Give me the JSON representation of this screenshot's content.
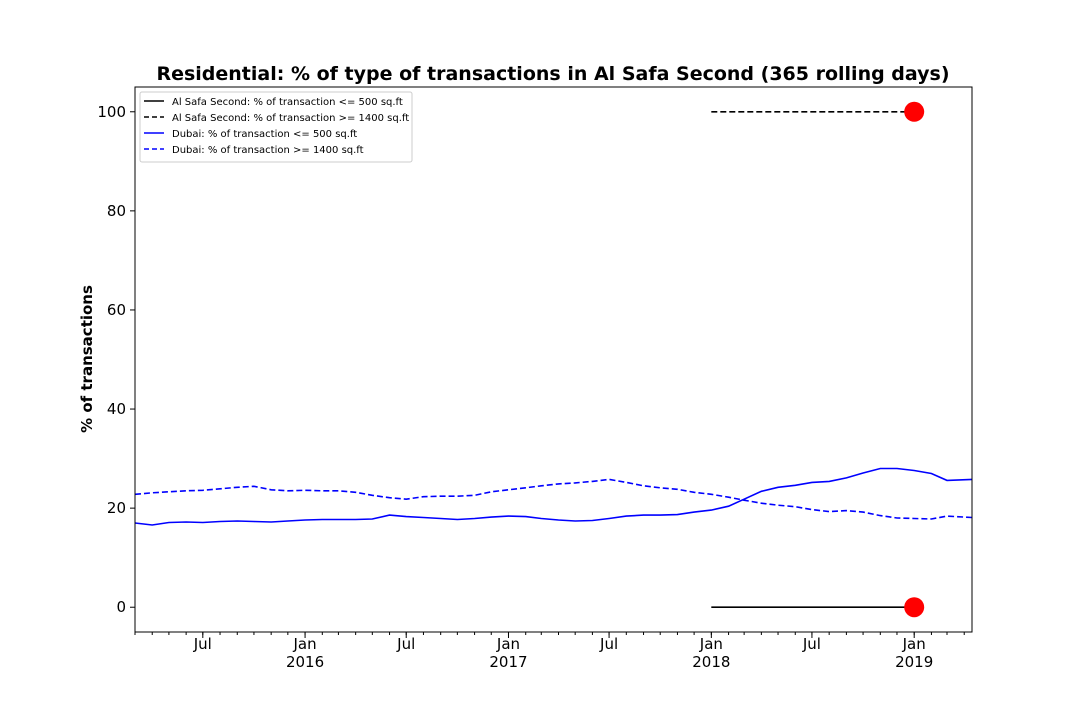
{
  "chart_data": {
    "type": "line",
    "title": "Residential: % of type of transactions in Al Safa Second (365 rolling days)",
    "xlabel": "",
    "ylabel": "% of transactions",
    "xlim": [
      "2015-03-01",
      "2019-04-15"
    ],
    "ylim": [
      -5,
      105
    ],
    "yticks": [
      0,
      20,
      40,
      60,
      80,
      100
    ],
    "xticks": [
      {
        "date": "2015-07-01",
        "label": "Jul",
        "sublabel": ""
      },
      {
        "date": "2016-01-01",
        "label": "Jan",
        "sublabel": "2016"
      },
      {
        "date": "2016-07-01",
        "label": "Jul",
        "sublabel": ""
      },
      {
        "date": "2017-01-01",
        "label": "Jan",
        "sublabel": "2017"
      },
      {
        "date": "2017-07-01",
        "label": "Jul",
        "sublabel": ""
      },
      {
        "date": "2018-01-01",
        "label": "Jan",
        "sublabel": "2018"
      },
      {
        "date": "2018-07-01",
        "label": "Jul",
        "sublabel": ""
      },
      {
        "date": "2019-01-01",
        "label": "Jan",
        "sublabel": "2019"
      }
    ],
    "grid": false,
    "legend_position": "upper-left",
    "series": [
      {
        "name": "Al Safa Second: % of transaction <= 500 sq.ft",
        "color": "#000000",
        "dash": "solid",
        "x": [
          "2018-01-01",
          "2019-01-01"
        ],
        "y": [
          0,
          0
        ],
        "end_marker": {
          "x": "2019-01-01",
          "y": 0,
          "color": "#ff0000"
        }
      },
      {
        "name": "Al Safa Second: % of transaction >= 1400 sq.ft",
        "color": "#000000",
        "dash": "dashed",
        "x": [
          "2018-01-01",
          "2019-01-01"
        ],
        "y": [
          100,
          100
        ],
        "end_marker": {
          "x": "2019-01-01",
          "y": 100,
          "color": "#ff0000"
        }
      },
      {
        "name": "Dubai: % of transaction <= 500 sq.ft",
        "color": "#0000ff",
        "dash": "solid",
        "x": [
          "2015-03-01",
          "2015-04-01",
          "2015-05-01",
          "2015-06-01",
          "2015-07-01",
          "2015-08-01",
          "2015-09-01",
          "2015-10-01",
          "2015-11-01",
          "2015-12-01",
          "2016-01-01",
          "2016-02-01",
          "2016-03-01",
          "2016-04-01",
          "2016-05-01",
          "2016-06-01",
          "2016-07-01",
          "2016-08-01",
          "2016-09-01",
          "2016-10-01",
          "2016-11-01",
          "2016-12-01",
          "2017-01-01",
          "2017-02-01",
          "2017-03-01",
          "2017-04-01",
          "2017-05-01",
          "2017-06-01",
          "2017-07-01",
          "2017-08-01",
          "2017-09-01",
          "2017-10-01",
          "2017-11-01",
          "2017-12-01",
          "2018-01-01",
          "2018-02-01",
          "2018-03-01",
          "2018-04-01",
          "2018-05-01",
          "2018-06-01",
          "2018-07-01",
          "2018-08-01",
          "2018-09-01",
          "2018-10-01",
          "2018-11-01",
          "2018-12-01",
          "2019-01-01",
          "2019-02-01",
          "2019-03-01",
          "2019-04-15"
        ],
        "y": [
          17.0,
          16.6,
          17.1,
          17.2,
          17.1,
          17.3,
          17.4,
          17.3,
          17.2,
          17.4,
          17.6,
          17.7,
          17.7,
          17.7,
          17.8,
          18.6,
          18.3,
          18.1,
          17.9,
          17.7,
          17.9,
          18.2,
          18.4,
          18.3,
          17.9,
          17.6,
          17.4,
          17.5,
          17.9,
          18.4,
          18.6,
          18.6,
          18.7,
          19.2,
          19.6,
          20.4,
          21.8,
          23.4,
          24.2,
          24.6,
          25.2,
          25.4,
          26.1,
          27.1,
          28.0,
          28.0,
          27.6,
          27.0,
          25.6,
          25.8
        ]
      },
      {
        "name": "Dubai: % of transaction >= 1400 sq.ft",
        "color": "#0000ff",
        "dash": "dashed",
        "x": [
          "2015-03-01",
          "2015-04-01",
          "2015-05-01",
          "2015-06-01",
          "2015-07-01",
          "2015-08-01",
          "2015-09-01",
          "2015-10-01",
          "2015-11-01",
          "2015-12-01",
          "2016-01-01",
          "2016-02-01",
          "2016-03-01",
          "2016-04-01",
          "2016-05-01",
          "2016-06-01",
          "2016-07-01",
          "2016-08-01",
          "2016-09-01",
          "2016-10-01",
          "2016-11-01",
          "2016-12-01",
          "2017-01-01",
          "2017-02-01",
          "2017-03-01",
          "2017-04-01",
          "2017-05-01",
          "2017-06-01",
          "2017-07-01",
          "2017-08-01",
          "2017-09-01",
          "2017-10-01",
          "2017-11-01",
          "2017-12-01",
          "2018-01-01",
          "2018-02-01",
          "2018-03-01",
          "2018-04-01",
          "2018-05-01",
          "2018-06-01",
          "2018-07-01",
          "2018-08-01",
          "2018-09-01",
          "2018-10-01",
          "2018-11-01",
          "2018-12-01",
          "2019-01-01",
          "2019-02-01",
          "2019-03-01",
          "2019-04-15"
        ],
        "y": [
          22.8,
          23.1,
          23.3,
          23.5,
          23.6,
          23.9,
          24.2,
          24.4,
          23.7,
          23.5,
          23.6,
          23.5,
          23.5,
          23.2,
          22.6,
          22.1,
          21.8,
          22.3,
          22.4,
          22.4,
          22.6,
          23.3,
          23.7,
          24.1,
          24.5,
          24.9,
          25.1,
          25.4,
          25.8,
          25.2,
          24.5,
          24.1,
          23.8,
          23.2,
          22.8,
          22.2,
          21.6,
          21.0,
          20.6,
          20.3,
          19.7,
          19.3,
          19.5,
          19.2,
          18.5,
          18.0,
          17.9,
          17.8,
          18.4,
          18.1
        ]
      }
    ]
  }
}
